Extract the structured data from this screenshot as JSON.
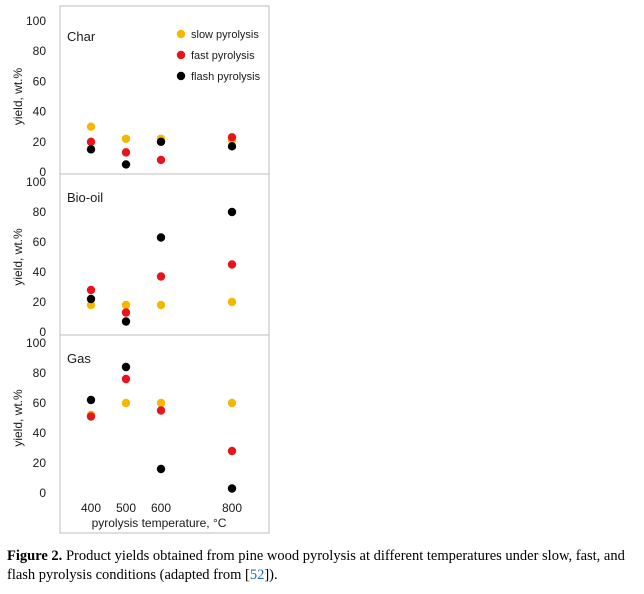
{
  "colors": {
    "slow": "#f5b800",
    "fast": "#e8141c",
    "flash": "#000000",
    "frame": "#bdbdbd"
  },
  "chart_data": [
    {
      "type": "scatter",
      "panel": "Char",
      "ylabel": "yield, wt.%",
      "ylim": [
        0,
        100
      ],
      "yticks": [
        0,
        20,
        40,
        60,
        80,
        100
      ],
      "x_categories": [
        400,
        500,
        600,
        800
      ],
      "legend": {
        "placement": "top-right",
        "entries": [
          "slow pyrolysis",
          "fast pyrolysis",
          "flash pyrolysis"
        ]
      },
      "series": [
        {
          "name": "slow pyrolysis",
          "key": "slow",
          "x": [
            400,
            500,
            600,
            800
          ],
          "y": [
            30,
            22,
            22,
            21
          ]
        },
        {
          "name": "fast pyrolysis",
          "key": "fast",
          "x": [
            400,
            500,
            600,
            800
          ],
          "y": [
            20,
            13,
            8,
            23
          ]
        },
        {
          "name": "flash pyrolysis",
          "key": "flash",
          "x": [
            400,
            500,
            600,
            800
          ],
          "y": [
            15,
            5,
            20,
            17
          ]
        }
      ]
    },
    {
      "type": "scatter",
      "panel": "Bio-oil",
      "ylabel": "yield, wt.%",
      "ylim": [
        0,
        100
      ],
      "yticks": [
        0,
        20,
        40,
        60,
        80,
        100
      ],
      "x_categories": [
        400,
        500,
        600,
        800
      ],
      "series": [
        {
          "name": "slow pyrolysis",
          "key": "slow",
          "x": [
            400,
            500,
            600,
            800
          ],
          "y": [
            18,
            18,
            18,
            20
          ]
        },
        {
          "name": "fast pyrolysis",
          "key": "fast",
          "x": [
            400,
            500,
            600,
            800
          ],
          "y": [
            28,
            13,
            37,
            45
          ]
        },
        {
          "name": "flash pyrolysis",
          "key": "flash",
          "x": [
            400,
            500,
            600,
            800
          ],
          "y": [
            22,
            7,
            63,
            80
          ]
        }
      ]
    },
    {
      "type": "scatter",
      "panel": "Gas",
      "ylabel": "yield, wt.%",
      "xlabel": "pyrolysis temperature, °C",
      "ylim": [
        0,
        100
      ],
      "yticks": [
        0,
        20,
        40,
        60,
        80,
        100
      ],
      "x_categories": [
        400,
        500,
        600,
        800
      ],
      "series": [
        {
          "name": "slow pyrolysis",
          "key": "slow",
          "x": [
            400,
            500,
            600,
            800
          ],
          "y": [
            52,
            60,
            60,
            60
          ]
        },
        {
          "name": "fast pyrolysis",
          "key": "fast",
          "x": [
            400,
            500,
            600,
            800
          ],
          "y": [
            51,
            76,
            55,
            28
          ]
        },
        {
          "name": "flash pyrolysis",
          "key": "flash",
          "x": [
            400,
            500,
            600,
            800
          ],
          "y": [
            62,
            84,
            16,
            3
          ]
        }
      ]
    }
  ],
  "caption": {
    "label": "Figure 2.",
    "text": " Product yields obtained from pine wood pyrolysis at different temperatures under slow, fast, and flash pyrolysis conditions (adapted from [",
    "ref": "52",
    "tail": "])."
  }
}
